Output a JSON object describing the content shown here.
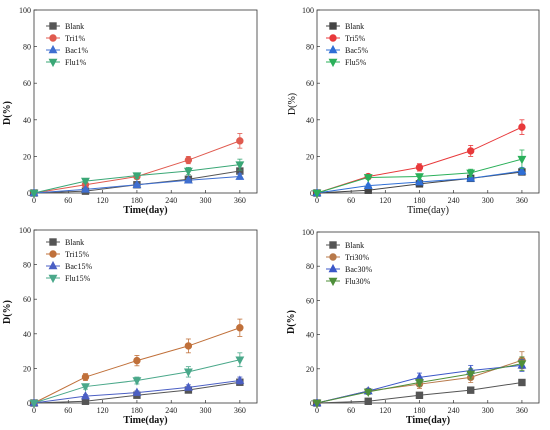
{
  "chart_data": [
    {
      "type": "line",
      "xlabel": "Time(day)",
      "ylabel": "D(%)",
      "xlim": [
        0,
        390
      ],
      "ylim": [
        0,
        100
      ],
      "xticks": [
        0,
        60,
        120,
        180,
        240,
        300,
        360
      ],
      "yticks": [
        0,
        20,
        40,
        60,
        80,
        100
      ],
      "legend": "top-left",
      "x": [
        0,
        90,
        180,
        270,
        360
      ],
      "series": [
        {
          "name": "Blank",
          "color": "#555555",
          "marker": "square",
          "values": [
            0,
            1,
            4.5,
            7.5,
            12
          ],
          "err": [
            0,
            0.5,
            0.8,
            1,
            1.5
          ]
        },
        {
          "name": "Tri1%",
          "color": "#e05a4f",
          "marker": "circle",
          "values": [
            0,
            4.5,
            9,
            18,
            28.5
          ],
          "err": [
            0,
            1,
            1.5,
            2,
            4
          ]
        },
        {
          "name": "Bac1%",
          "color": "#3f6fd1",
          "marker": "triangle-up",
          "values": [
            0,
            2,
            4.5,
            7,
            9
          ],
          "err": [
            0,
            0.5,
            0.8,
            1,
            1.5
          ]
        },
        {
          "name": "Flu1%",
          "color": "#3aa776",
          "marker": "triangle-down",
          "values": [
            0,
            6.5,
            9.5,
            12,
            15.5
          ],
          "err": [
            0,
            1,
            1.5,
            2,
            3
          ]
        }
      ]
    },
    {
      "type": "line",
      "xlabel": "Time(day)",
      "ylabel": "D(%)",
      "xlim": [
        0,
        390
      ],
      "ylim": [
        0,
        100
      ],
      "xticks": [
        0,
        60,
        120,
        180,
        240,
        300,
        360
      ],
      "yticks": [
        0,
        20,
        40,
        60,
        80,
        100
      ],
      "legend": "top-left",
      "x": [
        0,
        90,
        180,
        270,
        360
      ],
      "series": [
        {
          "name": "Blank",
          "color": "#444444",
          "marker": "square",
          "values": [
            0,
            1.5,
            5,
            8,
            11.5
          ],
          "err": [
            0,
            0.5,
            0.8,
            1,
            1.5
          ]
        },
        {
          "name": "Tri5%",
          "color": "#e8393b",
          "marker": "circle",
          "values": [
            0,
            9,
            14,
            23,
            36
          ],
          "err": [
            0,
            1,
            2,
            3,
            4
          ]
        },
        {
          "name": "Bac5%",
          "color": "#2f6fd6",
          "marker": "triangle-up",
          "values": [
            0,
            4,
            6,
            8,
            12
          ],
          "err": [
            0,
            0.8,
            1,
            1.2,
            2
          ]
        },
        {
          "name": "Flu5%",
          "color": "#2bb05a",
          "marker": "triangle-down",
          "values": [
            0,
            8.5,
            9,
            11,
            18.5
          ],
          "err": [
            0,
            1,
            1.5,
            2,
            5
          ]
        }
      ]
    },
    {
      "type": "line",
      "xlabel": "Time(day)",
      "ylabel": "D(%)",
      "xlim": [
        0,
        390
      ],
      "ylim": [
        0,
        100
      ],
      "xticks": [
        0,
        60,
        120,
        180,
        240,
        300,
        360
      ],
      "yticks": [
        0,
        20,
        40,
        60,
        80,
        100
      ],
      "legend": "top-left",
      "x": [
        0,
        90,
        180,
        270,
        360
      ],
      "series": [
        {
          "name": "Blank",
          "color": "#555555",
          "marker": "square",
          "values": [
            0,
            1,
            4.5,
            7.5,
            12
          ],
          "err": [
            0,
            0.5,
            0.8,
            1,
            1.5
          ]
        },
        {
          "name": "Tri15%",
          "color": "#c0703a",
          "marker": "circle",
          "values": [
            0,
            15,
            24.5,
            33,
            43.5
          ],
          "err": [
            0,
            2,
            3,
            4,
            5
          ]
        },
        {
          "name": "Bac15%",
          "color": "#4b5fc4",
          "marker": "triangle-up",
          "values": [
            0,
            4,
            6,
            9,
            13
          ],
          "err": [
            0,
            0.8,
            1,
            1.5,
            2
          ]
        },
        {
          "name": "Flu15%",
          "color": "#4aa88a",
          "marker": "triangle-down",
          "values": [
            0,
            9.5,
            13,
            18,
            25
          ],
          "err": [
            0,
            1.5,
            2,
            3,
            4
          ]
        }
      ]
    },
    {
      "type": "line",
      "xlabel": "Time(day)",
      "ylabel": "D(%)",
      "xlim": [
        0,
        390
      ],
      "ylim": [
        0,
        100
      ],
      "xticks": [
        0,
        60,
        120,
        180,
        240,
        300,
        360
      ],
      "yticks": [
        0,
        20,
        40,
        60,
        80,
        100
      ],
      "legend": "top-left",
      "x": [
        0,
        90,
        180,
        270,
        360
      ],
      "series": [
        {
          "name": "Blank",
          "color": "#555555",
          "marker": "square",
          "values": [
            0,
            1,
            4.5,
            7.5,
            12
          ],
          "err": [
            0,
            0.5,
            0.8,
            1,
            1.5
          ]
        },
        {
          "name": "Tri30%",
          "color": "#b8794a",
          "marker": "circle",
          "values": [
            0,
            7,
            11,
            15,
            25
          ],
          "err": [
            0,
            1.5,
            2.5,
            3,
            5
          ]
        },
        {
          "name": "Bac30%",
          "color": "#3b57c8",
          "marker": "triangle-up",
          "values": [
            0,
            7,
            15,
            19,
            22
          ],
          "err": [
            0,
            1.5,
            2.5,
            3,
            3.5
          ]
        },
        {
          "name": "Flu30%",
          "color": "#4f8f3a",
          "marker": "triangle-down",
          "values": [
            0,
            6.5,
            12,
            17,
            23
          ],
          "err": [
            0,
            1.5,
            2,
            3,
            4
          ]
        }
      ]
    }
  ]
}
